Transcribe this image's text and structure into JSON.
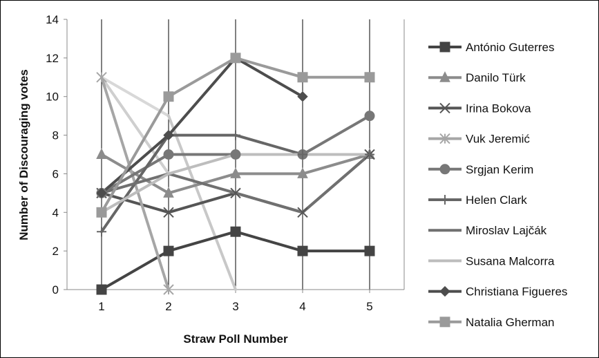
{
  "chart_data": {
    "type": "line",
    "title": "",
    "xlabel": "Straw Poll Number",
    "ylabel": "Number of Discouraging votes",
    "x": [
      1,
      2,
      3,
      4,
      5
    ],
    "ylim": [
      0,
      14
    ],
    "y_ticks": [
      "0",
      "2",
      "4",
      "6",
      "8",
      "10",
      "12",
      "14"
    ],
    "x_ticks": [
      "1",
      "2",
      "3",
      "4",
      "5"
    ],
    "grid": "vertical",
    "legend_position": "right",
    "series": [
      {
        "name": "António Guterres",
        "values": [
          0,
          2,
          3,
          2,
          2
        ],
        "color": "#444444",
        "marker": "square"
      },
      {
        "name": "Danilo Türk",
        "values": [
          7,
          5,
          6,
          6,
          7
        ],
        "color": "#8c8c8c",
        "marker": "triangle"
      },
      {
        "name": "Irina Bokova",
        "values": [
          5,
          4,
          5,
          4,
          7
        ],
        "color": "#555555",
        "marker": "x"
      },
      {
        "name": "Vuk Jeremić",
        "values": [
          11,
          0,
          null,
          null,
          null
        ],
        "color": "#a6a6a6",
        "marker": "star"
      },
      {
        "name": "Srgjan Kerim",
        "values": [
          5,
          7,
          7,
          7,
          9
        ],
        "color": "#777777",
        "marker": "circle"
      },
      {
        "name": "Helen Clark",
        "values": [
          3,
          8,
          8,
          7,
          7
        ],
        "color": "#666666",
        "marker": "plus"
      },
      {
        "name": "Miroslav Lajčák",
        "values": [
          5,
          6,
          5,
          4,
          7
        ],
        "color": "#707070",
        "marker": "none"
      },
      {
        "name": "Susana Malcorra",
        "values": [
          4,
          6,
          7,
          7,
          7
        ],
        "color": "#bdbdbd",
        "marker": "none"
      },
      {
        "name": "Christiana Figueres",
        "values": [
          5,
          8,
          12,
          10,
          null
        ],
        "color": "#4d4d4d",
        "marker": "diamond"
      },
      {
        "name": "Natalia Gherman",
        "values": [
          4,
          10,
          12,
          11,
          11
        ],
        "color": "#9a9a9a",
        "marker": "square"
      }
    ],
    "extra_segments": [
      {
        "series": "Vuk Jeremić",
        "from": [
          1,
          11
        ],
        "to": [
          2,
          6
        ],
        "color": "#cfcfcf"
      },
      {
        "series": "Susana Malcorra",
        "from": [
          1,
          11
        ],
        "to": [
          2,
          9
        ],
        "color": "#d8d8d8"
      },
      {
        "series": "Danilo Türk",
        "from": [
          2,
          9
        ],
        "to": [
          3,
          0
        ],
        "color": "#c8c8c8"
      }
    ]
  }
}
